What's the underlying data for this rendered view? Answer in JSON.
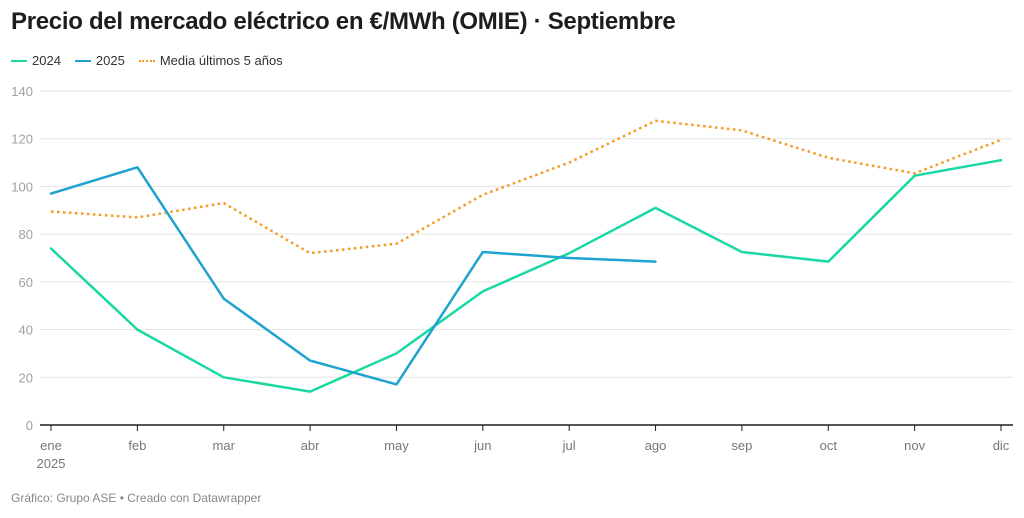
{
  "chart_data": {
    "type": "line",
    "title": "Precio del mercado eléctrico en €/MWh (OMIE) · Septiembre",
    "xlabel": "",
    "ylabel": "",
    "categories": [
      "ene",
      "feb",
      "mar",
      "abr",
      "may",
      "jun",
      "jul",
      "ago",
      "sep",
      "oct",
      "nov",
      "dic"
    ],
    "first_category_sublabel": "2025",
    "yticks": [
      0,
      20,
      40,
      60,
      80,
      100,
      120,
      140
    ],
    "ylim": [
      0,
      140
    ],
    "grid": true,
    "legend_position": "top-left",
    "series": [
      {
        "name": "2024",
        "color": "#18d8a3",
        "style": "solid",
        "values": [
          74,
          40,
          20,
          14,
          30,
          56,
          72,
          91,
          72.5,
          68.5,
          104.5,
          111
        ]
      },
      {
        "name": "2025",
        "color": "#1ea3cf",
        "style": "solid",
        "values": [
          97,
          108,
          53,
          27,
          17,
          72.5,
          70,
          68.5,
          null,
          null,
          null,
          null
        ]
      },
      {
        "name": "Media últimos 5 años",
        "color": "#f59a23",
        "style": "dotted",
        "values": [
          89.5,
          87,
          93,
          72,
          76,
          96.5,
          110,
          127.5,
          123.5,
          112,
          105.5,
          119.5
        ]
      }
    ]
  },
  "footer": {
    "text": "Gráfico: Grupo ASE • Creado con Datawrapper"
  }
}
